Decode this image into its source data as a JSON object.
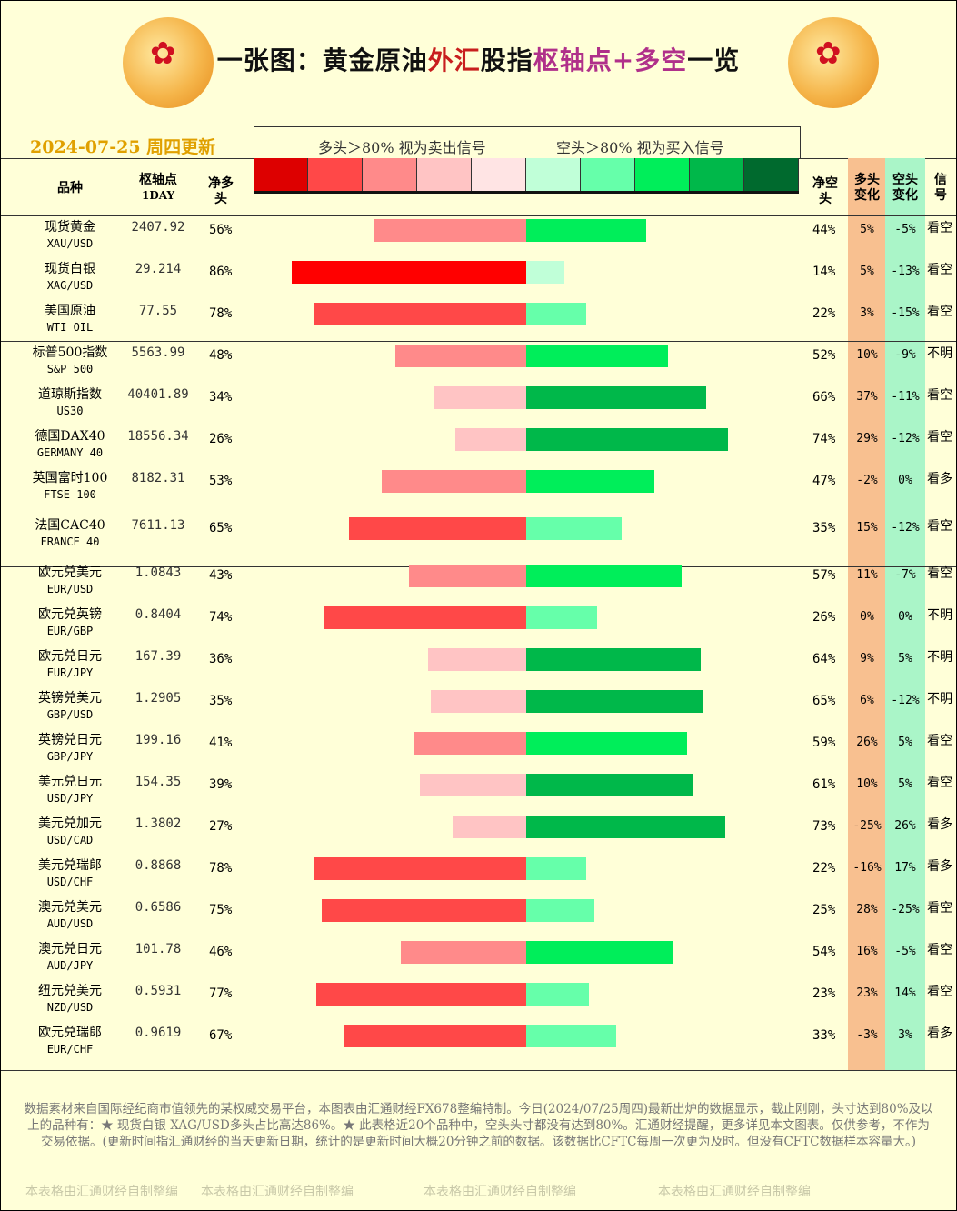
{
  "header": {
    "title_parts": [
      "一张图：黄金原油",
      "外汇",
      "股指",
      "枢轴点+多空",
      "一览"
    ],
    "date": "2024-07-25 周四更新",
    "legend_long": "多头＞80% 视为卖出信号",
    "legend_short": "空头＞80% 视为买入信号",
    "logo_icon": "flower-logo"
  },
  "legend_colors": [
    "#dd0000",
    "#ff4848",
    "#ff8a8a",
    "#ffc4c4",
    "#ffe4e4",
    "#c0ffd8",
    "#66ffaa",
    "#00ee5a",
    "#00b84a",
    "#006a2e"
  ],
  "columns": {
    "name": "品种",
    "pivot": "枢轴点",
    "pivot_sub": "1DAY",
    "net_long": "净多头",
    "net_short": "净空头",
    "long_change": "多头变化",
    "short_change": "空头变化",
    "signal": "信号"
  },
  "colors": {
    "long_change_bg": "#f8c090",
    "short_change_bg": "#aaf5c8"
  },
  "rows": [
    {
      "name": "现货黄金",
      "code": "XAU/USD",
      "pivot": "2407.92",
      "long": 56,
      "short": 44,
      "long_chg": "5%",
      "short_chg": "-5%",
      "signal": "看空"
    },
    {
      "name": "现货白银",
      "code": "XAG/USD",
      "pivot": "29.214",
      "long": 86,
      "short": 14,
      "long_chg": "5%",
      "short_chg": "-13%",
      "signal": "看空"
    },
    {
      "name": "美国原油",
      "code": "WTI OIL",
      "pivot": "77.55",
      "long": 78,
      "short": 22,
      "long_chg": "3%",
      "short_chg": "-15%",
      "signal": "看空"
    },
    {
      "name": "标普500指数",
      "code": "S&P 500",
      "pivot": "5563.99",
      "long": 48,
      "short": 52,
      "long_chg": "10%",
      "short_chg": "-9%",
      "signal": "不明"
    },
    {
      "name": "道琼斯指数",
      "code": "US30",
      "pivot": "40401.89",
      "long": 34,
      "short": 66,
      "long_chg": "37%",
      "short_chg": "-11%",
      "signal": "看空"
    },
    {
      "name": "德国DAX40",
      "code": "GERMANY 40",
      "pivot": "18556.34",
      "long": 26,
      "short": 74,
      "long_chg": "29%",
      "short_chg": "-12%",
      "signal": "看空"
    },
    {
      "name": "英国富时100",
      "code": "FTSE 100",
      "pivot": "8182.31",
      "long": 53,
      "short": 47,
      "long_chg": "-2%",
      "short_chg": "0%",
      "signal": "看多"
    },
    {
      "name": "法国CAC40",
      "code": "FRANCE 40",
      "pivot": "7611.13",
      "long": 65,
      "short": 35,
      "long_chg": "15%",
      "short_chg": "-12%",
      "signal": "看空"
    },
    {
      "name": "欧元兑美元",
      "code": "EUR/USD",
      "pivot": "1.0843",
      "long": 43,
      "short": 57,
      "long_chg": "11%",
      "short_chg": "-7%",
      "signal": "看空"
    },
    {
      "name": "欧元兑英镑",
      "code": "EUR/GBP",
      "pivot": "0.8404",
      "long": 74,
      "short": 26,
      "long_chg": "0%",
      "short_chg": "0%",
      "signal": "不明"
    },
    {
      "name": "欧元兑日元",
      "code": "EUR/JPY",
      "pivot": "167.39",
      "long": 36,
      "short": 64,
      "long_chg": "9%",
      "short_chg": "5%",
      "signal": "不明"
    },
    {
      "name": "英镑兑美元",
      "code": "GBP/USD",
      "pivot": "1.2905",
      "long": 35,
      "short": 65,
      "long_chg": "6%",
      "short_chg": "-12%",
      "signal": "不明"
    },
    {
      "name": "英镑兑日元",
      "code": "GBP/JPY",
      "pivot": "199.16",
      "long": 41,
      "short": 59,
      "long_chg": "26%",
      "short_chg": "5%",
      "signal": "看空"
    },
    {
      "name": "美元兑日元",
      "code": "USD/JPY",
      "pivot": "154.35",
      "long": 39,
      "short": 61,
      "long_chg": "10%",
      "short_chg": "5%",
      "signal": "看空"
    },
    {
      "name": "美元兑加元",
      "code": "USD/CAD",
      "pivot": "1.3802",
      "long": 27,
      "short": 73,
      "long_chg": "-25%",
      "short_chg": "26%",
      "signal": "看多"
    },
    {
      "name": "美元兑瑞郎",
      "code": "USD/CHF",
      "pivot": "0.8868",
      "long": 78,
      "short": 22,
      "long_chg": "-16%",
      "short_chg": "17%",
      "signal": "看多"
    },
    {
      "name": "澳元兑美元",
      "code": "AUD/USD",
      "pivot": "0.6586",
      "long": 75,
      "short": 25,
      "long_chg": "28%",
      "short_chg": "-25%",
      "signal": "看空"
    },
    {
      "name": "澳元兑日元",
      "code": "AUD/JPY",
      "pivot": "101.78",
      "long": 46,
      "short": 54,
      "long_chg": "16%",
      "short_chg": "-5%",
      "signal": "看空"
    },
    {
      "name": "纽元兑美元",
      "code": "NZD/USD",
      "pivot": "0.5931",
      "long": 77,
      "short": 23,
      "long_chg": "23%",
      "short_chg": "14%",
      "signal": "看空"
    },
    {
      "name": "欧元兑瑞郎",
      "code": "EUR/CHF",
      "pivot": "0.9619",
      "long": 67,
      "short": 33,
      "long_chg": "-3%",
      "short_chg": "3%",
      "signal": "看多"
    }
  ],
  "footer": {
    "text": "数据素材来自国际经纪商市值领先的某权威交易平台，本图表由汇通财经FX678整编特制。今日(2024/07/25周四)最新出炉的数据显示，截止刚刚，头寸达到80%及以上的品种有：★ 现货白银 XAG/USD多头占比高达86%。★ 此表格近20个品种中，空头头寸都没有达到80%。汇通财经提醒，更多详见本文图表。仅供参考，不作为交易依据。(更新时间指汇通财经的当天更新日期，统计的是更新时间大概20分钟之前的数据。该数据比CFTC每周一次更为及时。但没有CFTC数据样本容量大。)",
    "watermarks": [
      "本表格由汇通财经自制整编",
      "本表格由汇通财经自制整编",
      "本表格由汇通财经自制整编",
      "本表格由汇通财经自制整编"
    ]
  }
}
